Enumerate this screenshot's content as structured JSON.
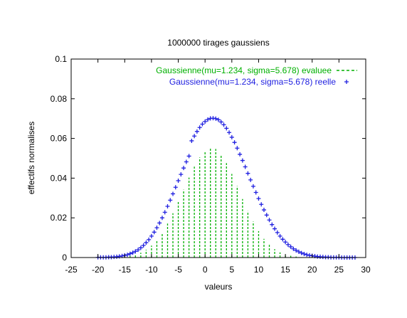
{
  "chart_data": {
    "type": "line",
    "title": "1000000 tirages gaussiens",
    "xlabel": "valeurs",
    "ylabel": "effectifs normalises",
    "xlim": [
      -25,
      30
    ],
    "ylim": [
      0,
      0.1
    ],
    "x_ticks": [
      "-25",
      "-20",
      "-15",
      "-10",
      "-5",
      "0",
      "5",
      "10",
      "15",
      "20",
      "25",
      "30"
    ],
    "y_ticks": [
      "0",
      "0.02",
      "0.04",
      "0.06",
      "0.08",
      "0.1"
    ],
    "grid": false,
    "legend_position": "top-right",
    "series": [
      {
        "name": "Gaussienne(mu=1.234, sigma=5.678) evaluee",
        "style": "impulses-dashed",
        "color": "#00b000",
        "x": [
          -20.0,
          -19.0,
          -18.0,
          -17.0,
          -16.0,
          -15.0,
          -14.0,
          -13.0,
          -12.0,
          -11.0,
          -10.0,
          -9.0,
          -8.0,
          -7.0,
          -6.0,
          -5.0,
          -4.0,
          -3.0,
          -2.0,
          -1.0,
          0.0,
          1.0,
          2.0,
          3.0,
          4.0,
          5.0,
          6.0,
          7.0,
          8.0,
          9.0,
          10.0,
          11.0,
          12.0,
          13.0,
          14.0,
          15.0,
          16.0,
          17.0,
          18.0,
          19.0,
          20.0,
          21.0,
          22.0,
          23.0,
          24.0,
          25.0,
          26.0,
          27.0,
          28.0
        ],
        "y": [
          0.0,
          0.0,
          0.0,
          0.0001,
          0.0002,
          0.0004,
          0.0008,
          0.0014,
          0.0024,
          0.0039,
          0.006,
          0.0089,
          0.0125,
          0.0171,
          0.0223,
          0.0281,
          0.0342,
          0.0403,
          0.0458,
          0.0504,
          0.0537,
          0.0552,
          0.0547,
          0.0518,
          0.0476,
          0.0421,
          0.036,
          0.0295,
          0.0234,
          0.0181,
          0.0133,
          0.0094,
          0.0064,
          0.0042,
          0.0026,
          0.0016,
          0.0009,
          0.0005,
          0.0002,
          0.0001,
          0.0001,
          0.0,
          0.0,
          0.0,
          0.0,
          0.0,
          0.0,
          0.0,
          0.0
        ]
      },
      {
        "name": "Gaussienne(mu=1.234, sigma=5.678) reelle",
        "style": "points-plus",
        "color": "#2020e0",
        "x": [
          -20.0,
          -19.5,
          -19.0,
          -18.5,
          -18.0,
          -17.5,
          -17.0,
          -16.5,
          -16.0,
          -15.5,
          -15.0,
          -14.5,
          -14.0,
          -13.5,
          -13.0,
          -12.5,
          -12.0,
          -11.5,
          -11.0,
          -10.5,
          -10.0,
          -9.5,
          -9.0,
          -8.5,
          -8.0,
          -7.5,
          -7.0,
          -6.5,
          -6.0,
          -5.5,
          -5.0,
          -4.5,
          -4.0,
          -3.5,
          -3.0,
          -2.5,
          -2.0,
          -1.5,
          -1.0,
          -0.5,
          0.0,
          0.5,
          1.0,
          1.5,
          2.0,
          2.5,
          3.0,
          3.5,
          4.0,
          4.5,
          5.0,
          5.5,
          6.0,
          6.5,
          7.0,
          7.5,
          8.0,
          8.5,
          9.0,
          9.5,
          10.0,
          10.5,
          11.0,
          11.5,
          12.0,
          12.5,
          13.0,
          13.5,
          14.0,
          14.5,
          15.0,
          15.5,
          16.0,
          16.5,
          17.0,
          17.5,
          18.0,
          18.5,
          19.0,
          19.5,
          20.0,
          20.5,
          21.0,
          21.5,
          22.0,
          22.5,
          23.0,
          23.5,
          24.0,
          24.5,
          25.0,
          25.5,
          26.0,
          26.5,
          27.0,
          27.5,
          28.0
        ],
        "y": [
          0.0001,
          0.0001,
          0.0001,
          0.0001,
          0.0002,
          0.0002,
          0.0003,
          0.0004,
          0.0006,
          0.0008,
          0.0011,
          0.0014,
          0.0019,
          0.0024,
          0.0031,
          0.0039,
          0.0049,
          0.0061,
          0.0075,
          0.009,
          0.0108,
          0.0128,
          0.015,
          0.0174,
          0.02,
          0.0228,
          0.0258,
          0.0289,
          0.0321,
          0.0354,
          0.0387,
          0.0419,
          0.0451,
          0.0482,
          0.0511,
          0.0588,
          0.0612,
          0.0635,
          0.0655,
          0.0672,
          0.0685,
          0.0695,
          0.0701,
          0.0702,
          0.07,
          0.0694,
          0.0683,
          0.0669,
          0.0651,
          0.063,
          0.0606,
          0.058,
          0.0551,
          0.052,
          0.0489,
          0.0457,
          0.0424,
          0.0391,
          0.0359,
          0.0328,
          0.0297,
          0.0268,
          0.024,
          0.0214,
          0.0189,
          0.0166,
          0.0145,
          0.0126,
          0.0108,
          0.0092,
          0.0078,
          0.0065,
          0.0054,
          0.0044,
          0.0036,
          0.0029,
          0.0023,
          0.0018,
          0.0014,
          0.0011,
          0.0009,
          0.0007,
          0.0005,
          0.0004,
          0.0003,
          0.0002,
          0.0002,
          0.0001,
          0.0001,
          0.0001,
          0.0001,
          0.0,
          0.0,
          0.0,
          0.0,
          0.0,
          0.0
        ]
      }
    ]
  },
  "colors": {
    "evaluee": "#00b000",
    "reelle": "#2020e0",
    "axis": "#000000"
  }
}
